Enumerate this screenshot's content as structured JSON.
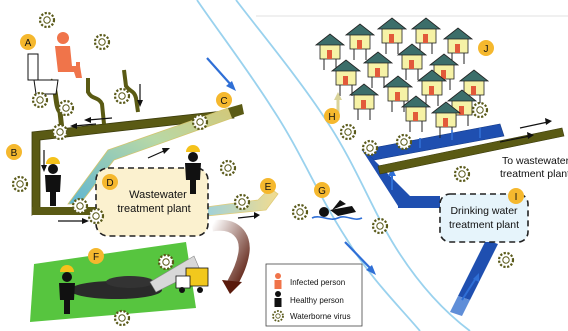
{
  "markers": [
    {
      "id": "A",
      "letter": "A"
    },
    {
      "id": "B",
      "letter": "B"
    },
    {
      "id": "C",
      "letter": "C"
    },
    {
      "id": "D",
      "letter": "D"
    },
    {
      "id": "E",
      "letter": "E"
    },
    {
      "id": "F",
      "letter": "F"
    },
    {
      "id": "G",
      "letter": "G"
    },
    {
      "id": "H",
      "letter": "H"
    },
    {
      "id": "I",
      "letter": "I"
    },
    {
      "id": "J",
      "letter": "J"
    }
  ],
  "wwtp": {
    "line1": "Wastewater",
    "line2": "treatment plant"
  },
  "dwtp": {
    "line1": "Drinking water",
    "line2": "treatment plant"
  },
  "to_wwtp": {
    "line1": "To wastewater",
    "line2": "treatment plant"
  },
  "legend": {
    "infected": "Infected person",
    "healthy": "Healthy person",
    "virus": "Waterborne virus"
  },
  "colors": {
    "marker": "#f5b82e",
    "sewer": "#5a5a14",
    "clean_pipe": "#1f4fb0",
    "river": "#9ad2ee",
    "infected": "#f0744a",
    "healthy": "#111111",
    "grass": "#57c53f",
    "wwtp_fill": "#fbf1cf",
    "dwtp_fill": "#e6f4fb"
  }
}
